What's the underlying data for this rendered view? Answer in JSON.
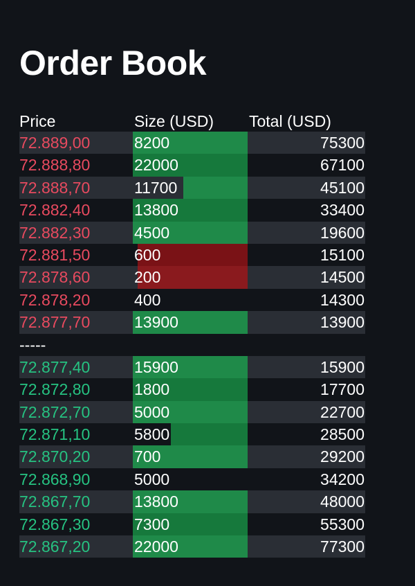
{
  "title": "Order Book",
  "columns": {
    "price": "Price",
    "size": "Size (USD)",
    "total": "Total (USD)"
  },
  "colors": {
    "ask_price": "#e84a5f",
    "bid_price": "#26c281",
    "buy_bar": "#1f8a49",
    "sell_bar": "#8a1a1e",
    "background": "#111419",
    "row_stripe": "#2a2e35"
  },
  "asks": [
    {
      "price": "72.889,00",
      "size": "8200",
      "total": "75300",
      "bar": "buy",
      "fill": 1.0
    },
    {
      "price": "72.888,80",
      "size": "22000",
      "total": "67100",
      "bar": "buy",
      "fill": 1.0
    },
    {
      "price": "72.888,70",
      "size": "11700",
      "total": "45100",
      "bar": "buy",
      "fill": 0.56
    },
    {
      "price": "72.882,40",
      "size": "13800",
      "total": "33400",
      "bar": "buy",
      "fill": 1.0
    },
    {
      "price": "72.882,30",
      "size": "4500",
      "total": "19600",
      "bar": "buy",
      "fill": 1.0
    },
    {
      "price": "72.881,50",
      "size": "600",
      "total": "15100",
      "bar": "sell",
      "fill": 0.96
    },
    {
      "price": "72.878,60",
      "size": "200",
      "total": "14500",
      "bar": "sell",
      "fill": 0.96
    },
    {
      "price": "72.878,20",
      "size": "400",
      "total": "14300",
      "bar": "none",
      "fill": 0
    },
    {
      "price": "72.877,70",
      "size": "13900",
      "total": "13900",
      "bar": "buy",
      "fill": 1.0
    }
  ],
  "divider": "-----",
  "bids": [
    {
      "price": "72.877,40",
      "size": "15900",
      "total": "15900",
      "bar": "buy",
      "fill": 1.0
    },
    {
      "price": "72.872,80",
      "size": "1800",
      "total": "17700",
      "bar": "buy",
      "fill": 1.0
    },
    {
      "price": "72.872,70",
      "size": "5000",
      "total": "22700",
      "bar": "buy",
      "fill": 1.0
    },
    {
      "price": "72.871,10",
      "size": "5800",
      "total": "28500",
      "bar": "buy",
      "fill": 0.67
    },
    {
      "price": "72.870,20",
      "size": "700",
      "total": "29200",
      "bar": "buy",
      "fill": 1.0
    },
    {
      "price": "72.868,90",
      "size": "5000",
      "total": "34200",
      "bar": "none",
      "fill": 0
    },
    {
      "price": "72.867,70",
      "size": "13800",
      "total": "48000",
      "bar": "buy",
      "fill": 1.0
    },
    {
      "price": "72.867,30",
      "size": "7300",
      "total": "55300",
      "bar": "buy",
      "fill": 1.0
    },
    {
      "price": "72.867,20",
      "size": "22000",
      "total": "77300",
      "bar": "buy",
      "fill": 1.0
    }
  ]
}
